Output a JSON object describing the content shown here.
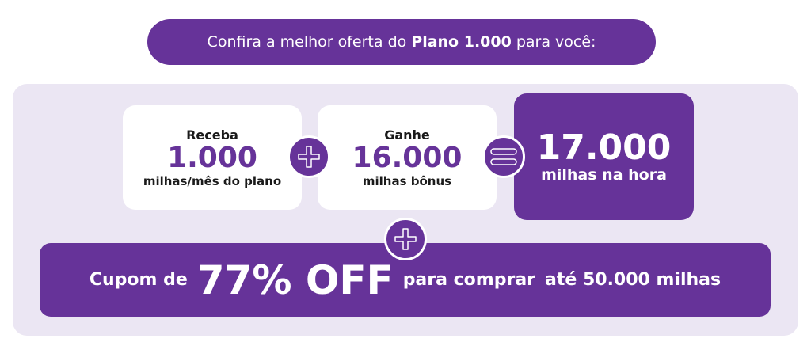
{
  "title": {
    "prefix": "Confira a melhor oferta do",
    "bold": "Plano 1.000",
    "suffix": "para você:"
  },
  "cards": [
    {
      "label": "Receba",
      "value": "1.000",
      "sub": "milhas/mês do plano"
    },
    {
      "label": "Ganhe",
      "value": "16.000",
      "sub": "milhas bônus"
    }
  ],
  "result": {
    "value": "17.000",
    "sub": "milhas na hora"
  },
  "coupon": {
    "prefix": "Cupom de",
    "big": "77% OFF",
    "middle": "para comprar",
    "suffix": "até 50.000 milhas"
  },
  "icons": [
    "plus-icon",
    "equals-icon",
    "plus-icon"
  ],
  "colors": {
    "brand": "#663399",
    "panel": "#ebe6f3"
  }
}
